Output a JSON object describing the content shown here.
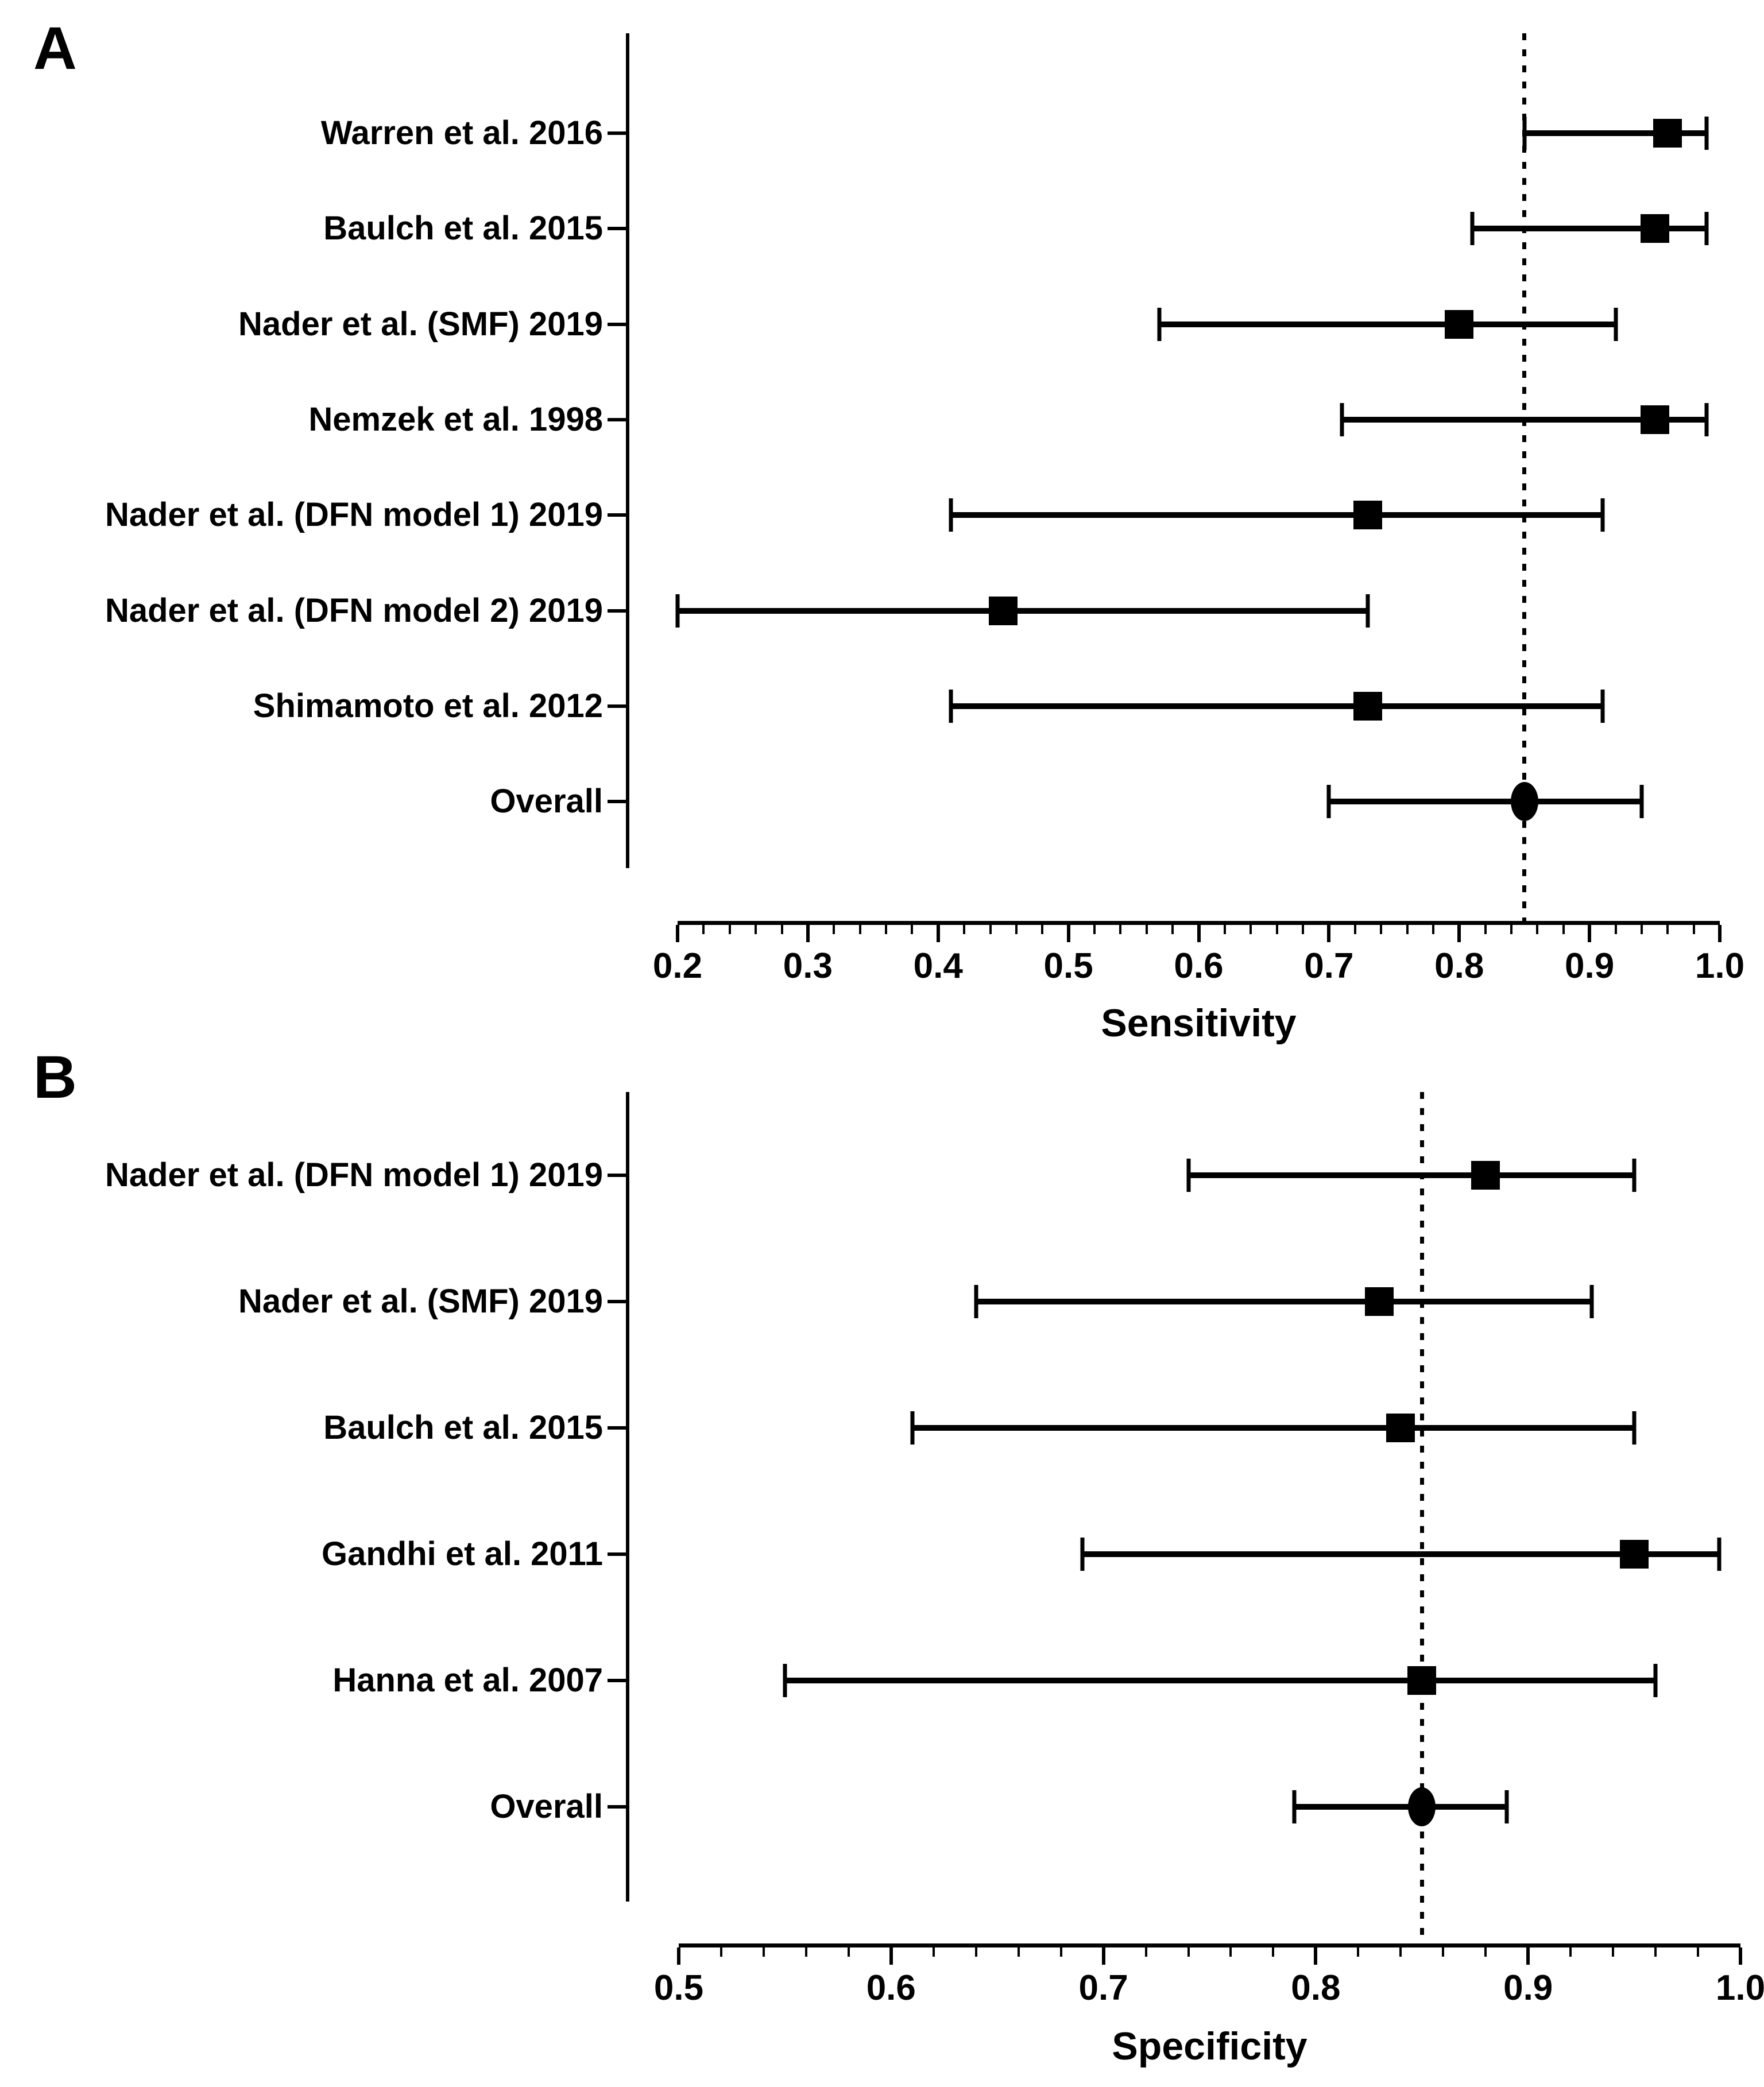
{
  "figure": {
    "background_color": "#ffffff",
    "ink_color": "#000000"
  },
  "chart_data": [
    {
      "type": "scatter",
      "variant": "forest-plot",
      "panel_letter": "A",
      "xlabel": "Sensitivity",
      "xlim": [
        0.2,
        1.0
      ],
      "major_tick_labels": [
        "0.2",
        "0.3",
        "0.4",
        "0.5",
        "0.6",
        "0.7",
        "0.8",
        "0.9",
        "1.0"
      ],
      "minor_tick_step": 0.02,
      "reference_line_value": 0.85,
      "reference_line_style": "dotted",
      "grid": false,
      "studies": [
        {
          "label": "Warren et al. 2016",
          "estimate": 0.96,
          "ci_low": 0.85,
          "ci_high": 0.99,
          "marker": "square"
        },
        {
          "label": "Baulch et al. 2015",
          "estimate": 0.95,
          "ci_low": 0.81,
          "ci_high": 0.99,
          "marker": "square"
        },
        {
          "label": "Nader et al. (SMF) 2019",
          "estimate": 0.8,
          "ci_low": 0.57,
          "ci_high": 0.92,
          "marker": "square"
        },
        {
          "label": "Nemzek et al. 1998",
          "estimate": 0.95,
          "ci_low": 0.71,
          "ci_high": 0.99,
          "marker": "square"
        },
        {
          "label": "Nader et al. (DFN model 1) 2019",
          "estimate": 0.73,
          "ci_low": 0.41,
          "ci_high": 0.91,
          "marker": "square"
        },
        {
          "label": "Nader et al. (DFN model 2) 2019",
          "estimate": 0.45,
          "ci_low": 0.2,
          "ci_high": 0.73,
          "marker": "square"
        },
        {
          "label": "Shimamoto et al. 2012",
          "estimate": 0.73,
          "ci_low": 0.41,
          "ci_high": 0.91,
          "marker": "square"
        },
        {
          "label": "Overall",
          "estimate": 0.85,
          "ci_low": 0.7,
          "ci_high": 0.94,
          "marker": "circle"
        }
      ]
    },
    {
      "type": "scatter",
      "variant": "forest-plot",
      "panel_letter": "B",
      "xlabel": "Specificity",
      "xlim": [
        0.5,
        1.0
      ],
      "major_tick_labels": [
        "0.5",
        "0.6",
        "0.7",
        "0.8",
        "0.9",
        "1.0"
      ],
      "minor_tick_step": 0.02,
      "reference_line_value": 0.85,
      "reference_line_style": "dotted",
      "grid": false,
      "studies": [
        {
          "label": "Nader et al. (DFN model 1) 2019",
          "estimate": 0.88,
          "ci_low": 0.74,
          "ci_high": 0.95,
          "marker": "square"
        },
        {
          "label": "Nader et al. (SMF) 2019",
          "estimate": 0.83,
          "ci_low": 0.64,
          "ci_high": 0.93,
          "marker": "square"
        },
        {
          "label": "Baulch et al. 2015",
          "estimate": 0.84,
          "ci_low": 0.61,
          "ci_high": 0.95,
          "marker": "square"
        },
        {
          "label": "Gandhi et al. 2011",
          "estimate": 0.95,
          "ci_low": 0.69,
          "ci_high": 0.99,
          "marker": "square"
        },
        {
          "label": "Hanna et al. 2007",
          "estimate": 0.85,
          "ci_low": 0.55,
          "ci_high": 0.96,
          "marker": "square"
        },
        {
          "label": "Overall",
          "estimate": 0.85,
          "ci_low": 0.79,
          "ci_high": 0.89,
          "marker": "circle"
        }
      ]
    }
  ]
}
